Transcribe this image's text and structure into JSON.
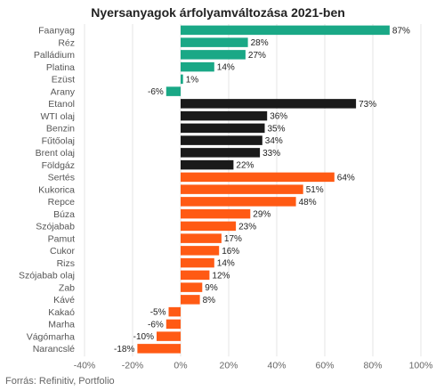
{
  "chart_data": {
    "type": "bar",
    "orientation": "horizontal",
    "title": "Nyersanyagok árfolyamváltozása 2021-ben",
    "xlim": [
      -40,
      100
    ],
    "xticks": [
      -40,
      -20,
      0,
      20,
      40,
      60,
      80,
      100
    ],
    "tick_labels": [
      "-40%",
      "-20%",
      "0%",
      "20%",
      "40%",
      "60%",
      "80%",
      "100%"
    ],
    "grid": true,
    "categories": [
      "Faanyag",
      "Réz",
      "Palládium",
      "Platina",
      "Ezüst",
      "Arany",
      "Etanol",
      "WTI olaj",
      "Benzin",
      "Fűtőolaj",
      "Brent olaj",
      "Földgáz",
      "Sertés",
      "Kukorica",
      "Repce",
      "Búza",
      "Szójabab",
      "Pamut",
      "Cukor",
      "Rizs",
      "Szójabab olaj",
      "Zab",
      "Kávé",
      "Kakaó",
      "Marha",
      "Vágómarha",
      "Narancslé"
    ],
    "values": [
      87,
      28,
      27,
      14,
      1,
      -6,
      73,
      36,
      35,
      34,
      33,
      22,
      64,
      51,
      48,
      29,
      23,
      17,
      16,
      14,
      12,
      9,
      8,
      -5,
      -6,
      -10,
      -18
    ],
    "value_labels": [
      "87%",
      "28%",
      "27%",
      "14%",
      "1%",
      "-6%",
      "73%",
      "36%",
      "35%",
      "34%",
      "33%",
      "22%",
      "64%",
      "51%",
      "48%",
      "29%",
      "23%",
      "17%",
      "16%",
      "14%",
      "12%",
      "9%",
      "8%",
      "-5%",
      "-6%",
      "-10%",
      "-18%"
    ],
    "groups": [
      {
        "color": "#1aa886",
        "count": 6
      },
      {
        "color": "#1a1a1a",
        "count": 6
      },
      {
        "color": "#ff5a14",
        "count": 15
      }
    ]
  },
  "source": "Forrás: Refinitiv, Portfolio"
}
